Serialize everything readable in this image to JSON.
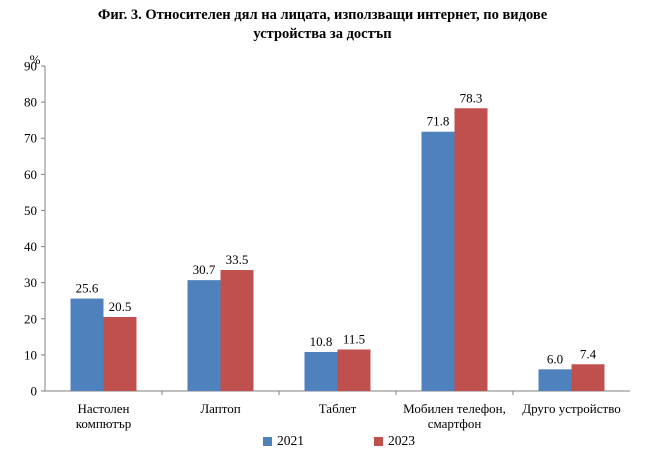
{
  "title_line1": "Фиг. 3. Относителен дял на лицата, използващи интернет, по видове",
  "title_line2": "устройства за достъп",
  "chart_data": {
    "type": "bar",
    "title": "Фиг. 3. Относителен дял на лицата, използващи интернет, по видове устройства за достъп",
    "ylabel": "%",
    "ylim": [
      0,
      90
    ],
    "yticks": [
      "0",
      "10",
      "20",
      "30",
      "40",
      "50",
      "60",
      "70",
      "80",
      "90"
    ],
    "categories": [
      [
        "Настолен",
        "компютър"
      ],
      [
        "Лаптоп"
      ],
      [
        "Таблет"
      ],
      [
        "Мобилен телефон,",
        "смартфон"
      ],
      [
        "Друго устройство"
      ]
    ],
    "series": [
      {
        "name": "2021",
        "color": "#4f81bd",
        "values": [
          25.6,
          30.7,
          10.8,
          71.8,
          6.0
        ],
        "labels": [
          "25.6",
          "30.7",
          "10.8",
          "71.8",
          "6.0"
        ]
      },
      {
        "name": "2023",
        "color": "#c0504d",
        "values": [
          20.5,
          33.5,
          11.5,
          78.3,
          7.4
        ],
        "labels": [
          "20.5",
          "33.5",
          "11.5",
          "78.3",
          "7.4"
        ]
      }
    ],
    "grid": false,
    "legend": "bottom"
  }
}
